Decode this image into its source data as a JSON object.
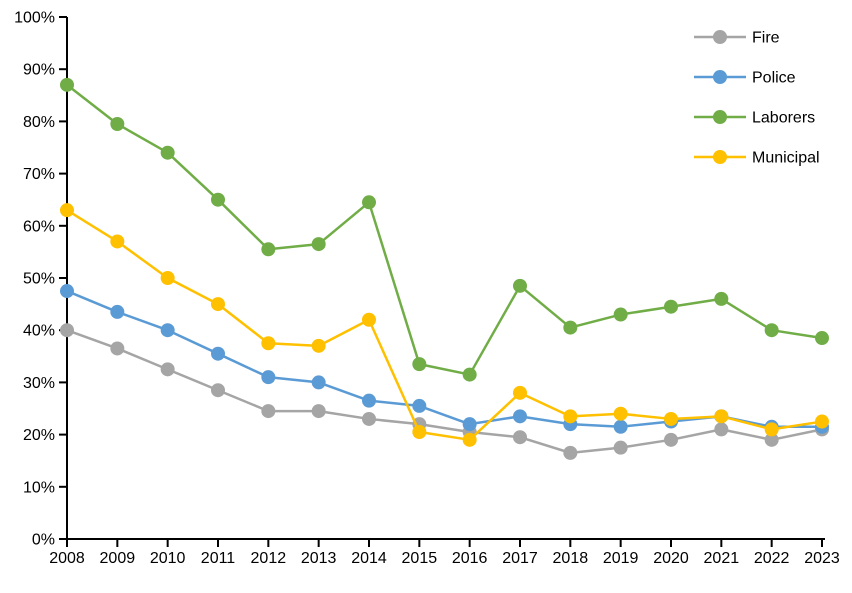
{
  "chart_data": {
    "type": "line",
    "title": "",
    "xlabel": "",
    "ylabel": "",
    "x": [
      "2008",
      "2009",
      "2010",
      "2011",
      "2012",
      "2013",
      "2014",
      "2015",
      "2016",
      "2017",
      "2018",
      "2019",
      "2020",
      "2021",
      "2022",
      "2023"
    ],
    "yticks": [
      "0%",
      "10%",
      "20%",
      "30%",
      "40%",
      "50%",
      "60%",
      "70%",
      "80%",
      "90%",
      "100%"
    ],
    "ylim": [
      0,
      100
    ],
    "grid": false,
    "legend_position": "top-right",
    "axis_color": "#000000",
    "background_color": "#ffffff",
    "series": [
      {
        "name": "Fire",
        "color": "#A5A5A5",
        "values": [
          40,
          36.5,
          32.5,
          28.5,
          24.5,
          24.5,
          23,
          22,
          20.5,
          19.5,
          16.5,
          17.5,
          19,
          21,
          19,
          21
        ]
      },
      {
        "name": "Police",
        "color": "#5B9BD5",
        "values": [
          47.5,
          43.5,
          40,
          35.5,
          31,
          30,
          26.5,
          25.5,
          22,
          23.5,
          22,
          21.5,
          22.5,
          23.5,
          21.5,
          21.5
        ]
      },
      {
        "name": "Laborers",
        "color": "#70AD47",
        "values": [
          87,
          79.5,
          74,
          65,
          55.5,
          56.5,
          64.5,
          33.5,
          31.5,
          48.5,
          40.5,
          43,
          44.5,
          46,
          40,
          38.5
        ]
      },
      {
        "name": "Municipal",
        "color": "#FFC000",
        "values": [
          63,
          57,
          50,
          45,
          37.5,
          37,
          42,
          20.5,
          19,
          28,
          23.5,
          24,
          23,
          23.5,
          21,
          22.5
        ]
      }
    ]
  }
}
